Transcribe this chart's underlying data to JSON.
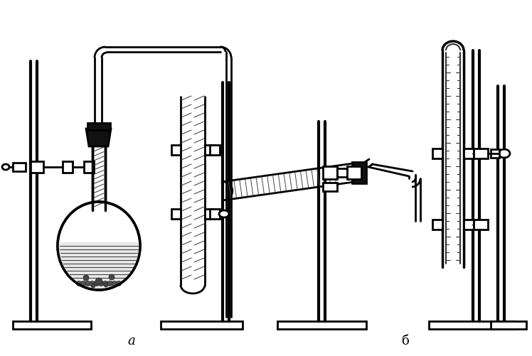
{
  "bg_color": "#ffffff",
  "lc": "#000000",
  "lw": 2.0,
  "label_a": "a",
  "label_b": "б",
  "label_fontsize": 13,
  "figsize": [
    7.48,
    5.02
  ],
  "dpi": 100
}
